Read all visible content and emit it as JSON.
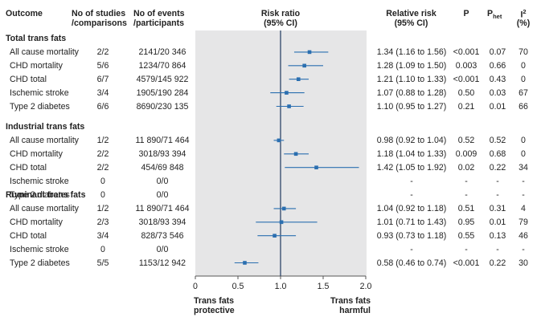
{
  "headers": {
    "outcome": "Outcome",
    "studies_line1": "No of studies",
    "studies_line2": "/comparisons",
    "events_line1": "No of events",
    "events_line2": "/participants",
    "rr_line1": "Risk ratio",
    "rr_line2": "(95% CI)",
    "relrisk_line1": "Relative risk",
    "relrisk_line2": "(95% CI)",
    "p": "P",
    "phet_main": "P",
    "phet_sub": "het",
    "i2_main": "I",
    "i2_sup": "2",
    "i2_line2": "(%)"
  },
  "groups": [
    {
      "title": "Total trans fats",
      "rows": [
        {
          "outcome": "All cause mortality",
          "studies": "2/2",
          "events": "2141/20 346",
          "rr_text": "1.34 (1.16 to 1.56)",
          "p": "<0.001",
          "phet": "0.07",
          "i2": "70"
        },
        {
          "outcome": "CHD mortality",
          "studies": "5/6",
          "events": "1234/70 864",
          "rr_text": "1.28 (1.09 to 1.50)",
          "p": "0.003",
          "phet": "0.66",
          "i2": "0"
        },
        {
          "outcome": "CHD total",
          "studies": "6/7",
          "events": "4579/145 922",
          "rr_text": "1.21 (1.10 to 1.33)",
          "p": "<0.001",
          "phet": "0.43",
          "i2": "0"
        },
        {
          "outcome": "Ischemic stroke",
          "studies": "3/4",
          "events": "1905/190 284",
          "rr_text": "1.07 (0.88 to 1.28)",
          "p": "0.50",
          "phet": "0.03",
          "i2": "67"
        },
        {
          "outcome": "Type 2 diabetes",
          "studies": "6/6",
          "events": "8690/230 135",
          "rr_text": "1.10 (0.95 to 1.27)",
          "p": "0.21",
          "phet": "0.01",
          "i2": "66"
        }
      ]
    },
    {
      "title": "Industrial trans fats",
      "rows": [
        {
          "outcome": "All cause mortality",
          "studies": "1/2",
          "events": "11 890/71 464",
          "rr_text": "0.98 (0.92 to 1.04)",
          "p": "0.52",
          "phet": "0.52",
          "i2": "0"
        },
        {
          "outcome": "CHD mortality",
          "studies": "2/2",
          "events": "3018/93 394",
          "rr_text": "1.18 (1.04 to 1.33)",
          "p": "0.009",
          "phet": "0.68",
          "i2": "0"
        },
        {
          "outcome": "CHD total",
          "studies": "2/2",
          "events": "454/69 848",
          "rr_text": "1.42 (1.05 to 1.92)",
          "p": "0.02",
          "phet": "0.22",
          "i2": "34"
        },
        {
          "outcome": "Ischemic stroke",
          "studies": "0",
          "events": "0/0",
          "rr_text": "-",
          "p": "-",
          "phet": "-",
          "i2": "-"
        },
        {
          "outcome": "Type 2 diabetes",
          "studies": "0",
          "events": "0/0",
          "rr_text": "-",
          "p": "-",
          "phet": "-",
          "i2": "-"
        }
      ]
    },
    {
      "title": "Ruminant trans fats",
      "rows": [
        {
          "outcome": "All cause mortality",
          "studies": "1/2",
          "events": "11 890/71 464",
          "rr_text": "1.04 (0.92 to 1.18)",
          "p": "0.51",
          "phet": "0.31",
          "i2": "4"
        },
        {
          "outcome": "CHD mortality",
          "studies": "2/3",
          "events": "3018/93 394",
          "rr_text": "1.01 (0.71 to 1.43)",
          "p": "0.95",
          "phet": "0.01",
          "i2": "79"
        },
        {
          "outcome": "CHD total",
          "studies": "3/4",
          "events": "828/73 546",
          "rr_text": "0.93 (0.73 to 1.18)",
          "p": "0.55",
          "phet": "0.13",
          "i2": "46"
        },
        {
          "outcome": "Ischemic stroke",
          "studies": "0",
          "events": "0/0",
          "rr_text": "-",
          "p": "-",
          "phet": "-",
          "i2": "-"
        },
        {
          "outcome": "Type 2 diabetes",
          "studies": "5/5",
          "events": "1153/12 942",
          "rr_text": "0.58 (0.46 to 0.74)",
          "p": "<0.001",
          "phet": "0.22",
          "i2": "30"
        }
      ]
    }
  ],
  "footer": {
    "left_line1": "Trans fats",
    "left_line2": "protective",
    "right_line1": "Trans fats",
    "right_line2": "harmful"
  },
  "chart_data": {
    "type": "scatter",
    "subtype": "forest_plot",
    "title": "Risk ratio (95% CI)",
    "xlabel": "",
    "xlim": [
      0,
      2.0
    ],
    "xticks": [
      0,
      0.5,
      1.0,
      1.5,
      2.0
    ],
    "xtick_labels": [
      "0",
      "0.5",
      "1.0",
      "1.5",
      "2.0"
    ],
    "reference_line": 1.0,
    "panel_color": "#e6e6e7",
    "marker_color": "#2b6fb0",
    "series": [
      {
        "name": "Total trans fats",
        "points": [
          {
            "label": "All cause mortality",
            "est": 1.34,
            "lo": 1.16,
            "hi": 1.56
          },
          {
            "label": "CHD mortality",
            "est": 1.28,
            "lo": 1.09,
            "hi": 1.5
          },
          {
            "label": "CHD total",
            "est": 1.21,
            "lo": 1.1,
            "hi": 1.33
          },
          {
            "label": "Ischemic stroke",
            "est": 1.07,
            "lo": 0.88,
            "hi": 1.28
          },
          {
            "label": "Type 2 diabetes",
            "est": 1.1,
            "lo": 0.95,
            "hi": 1.27
          }
        ]
      },
      {
        "name": "Industrial trans fats",
        "points": [
          {
            "label": "All cause mortality",
            "est": 0.98,
            "lo": 0.92,
            "hi": 1.04
          },
          {
            "label": "CHD mortality",
            "est": 1.18,
            "lo": 1.04,
            "hi": 1.33
          },
          {
            "label": "CHD total",
            "est": 1.42,
            "lo": 1.05,
            "hi": 1.92
          },
          {
            "label": "Ischemic stroke",
            "est": null,
            "lo": null,
            "hi": null
          },
          {
            "label": "Type 2 diabetes",
            "est": null,
            "lo": null,
            "hi": null
          }
        ]
      },
      {
        "name": "Ruminant trans fats",
        "points": [
          {
            "label": "All cause mortality",
            "est": 1.04,
            "lo": 0.92,
            "hi": 1.18
          },
          {
            "label": "CHD mortality",
            "est": 1.01,
            "lo": 0.71,
            "hi": 1.43
          },
          {
            "label": "CHD total",
            "est": 0.93,
            "lo": 0.73,
            "hi": 1.18
          },
          {
            "label": "Ischemic stroke",
            "est": null,
            "lo": null,
            "hi": null
          },
          {
            "label": "Type 2 diabetes",
            "est": 0.58,
            "lo": 0.46,
            "hi": 0.74
          }
        ]
      }
    ]
  }
}
